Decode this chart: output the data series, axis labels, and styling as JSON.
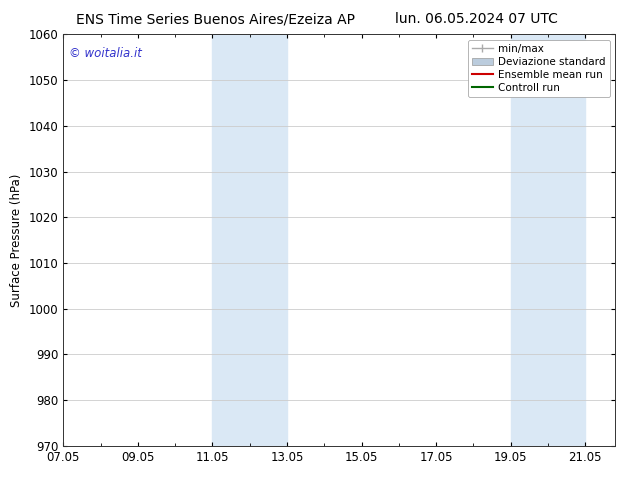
{
  "title_left": "ENS Time Series Buenos Aires/Ezeiza AP",
  "title_right": "lun. 06.05.2024 07 UTC",
  "ylabel": "Surface Pressure (hPa)",
  "ylim": [
    970,
    1060
  ],
  "yticks": [
    970,
    980,
    990,
    1000,
    1010,
    1020,
    1030,
    1040,
    1050,
    1060
  ],
  "xtick_labels": [
    "07.05",
    "09.05",
    "11.05",
    "13.05",
    "15.05",
    "17.05",
    "19.05",
    "21.05"
  ],
  "xtick_positions": [
    0,
    2,
    4,
    6,
    8,
    10,
    12,
    14
  ],
  "xlim": [
    0,
    14.8
  ],
  "shaded_bands": [
    {
      "x_start": 4.0,
      "x_end": 6.0,
      "color": "#dae8f5"
    },
    {
      "x_start": 12.0,
      "x_end": 14.0,
      "color": "#dae8f5"
    }
  ],
  "watermark_text": "© woitalia.it",
  "watermark_color": "#3333cc",
  "legend_items": [
    {
      "label": "min/max",
      "color": "#aaaaaa",
      "lw": 1.0,
      "style": "errorbar"
    },
    {
      "label": "Deviazione standard",
      "color": "#bbccdd",
      "lw": 6.0,
      "style": "bar"
    },
    {
      "label": "Ensemble mean run",
      "color": "#cc0000",
      "lw": 1.5,
      "style": "line"
    },
    {
      "label": "Controll run",
      "color": "#006600",
      "lw": 1.5,
      "style": "line"
    }
  ],
  "bg_color": "#ffffff",
  "grid_color": "#cccccc",
  "title_fontsize": 10,
  "tick_fontsize": 8.5,
  "ylabel_fontsize": 8.5,
  "watermark_fontsize": 8.5,
  "legend_fontsize": 7.5
}
